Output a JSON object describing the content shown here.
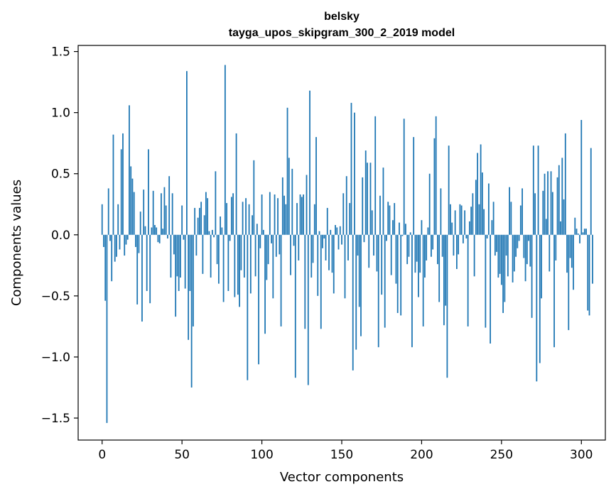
{
  "chart_data": {
    "type": "bar",
    "title": "belsky",
    "subtitle": "tayga_upos_skipgram_300_2_2019 model",
    "xlabel": "Vector components",
    "ylabel": "Components values",
    "xlim": [
      -15,
      315
    ],
    "ylim": [
      -1.68,
      1.55
    ],
    "xticks": [
      0,
      50,
      100,
      150,
      200,
      250,
      300
    ],
    "xtick_labels": [
      "0",
      "50",
      "100",
      "150",
      "200",
      "250",
      "300"
    ],
    "yticks": [
      1.5,
      1.0,
      0.5,
      0.0,
      -0.5,
      -1.0,
      -1.5
    ],
    "ytick_labels": [
      "1.5",
      "1.0",
      "0.5",
      "0.0",
      "−0.5",
      "−1.0",
      "−1.5"
    ],
    "grid": false,
    "color": "#1f77b4",
    "values": [
      0.25,
      -0.1,
      -0.54,
      -1.54,
      0.38,
      -0.05,
      -0.38,
      0.82,
      -0.22,
      -0.18,
      0.25,
      -0.12,
      0.7,
      0.83,
      -0.17,
      -0.08,
      -0.04,
      1.06,
      0.56,
      0.46,
      0.35,
      -0.1,
      -0.57,
      -0.15,
      0.19,
      -0.71,
      0.37,
      0.07,
      -0.46,
      0.7,
      -0.56,
      0.06,
      0.36,
      0.08,
      0.06,
      -0.06,
      -0.07,
      0.34,
      0.05,
      0.39,
      0.24,
      -0.03,
      0.48,
      -0.35,
      0.34,
      -0.16,
      -0.67,
      -0.34,
      -0.46,
      -0.35,
      0.24,
      -0.04,
      -0.44,
      1.34,
      -0.86,
      -0.46,
      -1.25,
      -0.75,
      0.22,
      -0.17,
      0.14,
      0.22,
      0.27,
      -0.32,
      0.16,
      0.35,
      0.3,
      0.03,
      -0.35,
      0.04,
      -0.02,
      0.52,
      -0.24,
      -0.4,
      0.15,
      0.06,
      -0.55,
      1.39,
      0.26,
      -0.46,
      -0.05,
      0.31,
      0.34,
      -0.51,
      0.83,
      -0.49,
      -0.59,
      -0.29,
      0.27,
      -0.35,
      0.3,
      -1.19,
      0.25,
      -0.48,
      0.16,
      0.61,
      -0.34,
      0.09,
      -1.06,
      -0.11,
      0.33,
      0.04,
      -0.81,
      -0.37,
      -0.24,
      0.35,
      -0.07,
      -0.52,
      0.33,
      -0.18,
      0.3,
      -0.16,
      -0.75,
      0.47,
      0.32,
      0.25,
      1.04,
      0.63,
      -0.33,
      0.54,
      -0.09,
      -1.17,
      0.26,
      -0.21,
      0.33,
      0.31,
      0.33,
      -0.77,
      0.49,
      -1.23,
      1.18,
      -0.35,
      -0.23,
      0.25,
      0.8,
      -0.5,
      0.03,
      -0.77,
      -0.11,
      -0.03,
      -0.21,
      0.22,
      -0.29,
      0.04,
      -0.31,
      -0.48,
      0.08,
      0.06,
      -0.12,
      0.07,
      -0.08,
      0.34,
      -0.52,
      0.48,
      -0.21,
      0.26,
      1.08,
      -1.11,
      1.0,
      -0.94,
      -0.17,
      -0.59,
      -0.83,
      0.47,
      -0.06,
      0.69,
      0.59,
      -0.27,
      0.59,
      0.2,
      -0.17,
      0.97,
      -0.3,
      -0.92,
      0.32,
      -0.49,
      0.55,
      -0.76,
      -0.05,
      0.27,
      0.24,
      -0.33,
      0.12,
      0.26,
      -0.4,
      -0.64,
      0.1,
      -0.66,
      -0.01,
      0.95,
      0.09,
      -0.24,
      -0.18,
      0.02,
      -0.92,
      0.8,
      -0.31,
      -0.22,
      -0.51,
      -0.31,
      0.12,
      -0.75,
      -0.35,
      -0.21,
      0.06,
      0.5,
      -0.18,
      -0.12,
      0.79,
      0.97,
      -0.24,
      -0.55,
      0.38,
      -0.18,
      -0.74,
      -0.58,
      -1.17,
      0.73,
      0.25,
      0.1,
      -0.17,
      0.2,
      -0.28,
      -0.16,
      0.25,
      0.24,
      -0.07,
      0.2,
      -0.03,
      -0.75,
      0.11,
      0.23,
      0.34,
      -0.34,
      0.45,
      0.67,
      0.25,
      0.74,
      0.51,
      0.21,
      -0.76,
      -0.03,
      0.42,
      -0.89,
      0.12,
      0.27,
      -0.17,
      -0.14,
      -0.35,
      -0.32,
      -0.41,
      -0.64,
      -0.55,
      -0.17,
      -0.34,
      0.39,
      0.27,
      -0.39,
      -0.3,
      -0.18,
      -0.11,
      -0.05,
      0.24,
      0.38,
      -0.19,
      -0.38,
      -0.24,
      -0.05,
      -0.26,
      -0.68,
      0.73,
      0.34,
      -1.2,
      0.73,
      -1.05,
      -0.52,
      0.36,
      0.5,
      0.13,
      0.52,
      -0.3,
      0.52,
      0.35,
      -0.92,
      -0.21,
      0.47,
      0.57,
      0.11,
      0.63,
      0.29,
      0.83,
      -0.31,
      -0.78,
      -0.19,
      -0.27,
      -0.45,
      0.14,
      0.05,
      0.01,
      -0.07,
      0.94,
      0.02,
      0.05,
      0.05,
      -0.62,
      -0.66,
      0.71,
      -0.4
    ]
  }
}
